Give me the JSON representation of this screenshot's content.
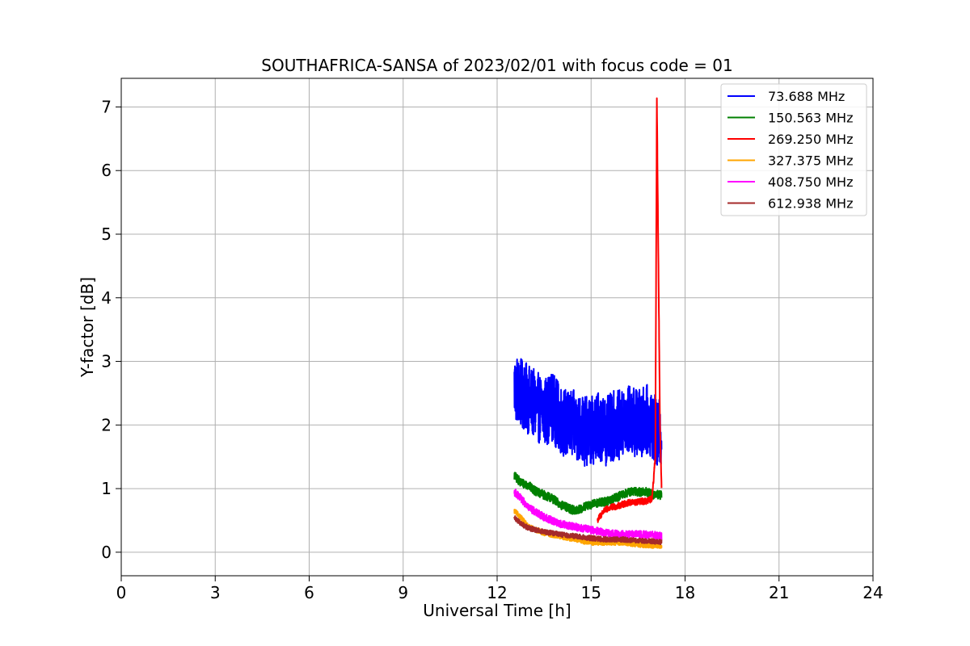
{
  "chart_data": {
    "type": "line",
    "title": "SOUTHAFRICA-SANSA of 2023/02/01 with focus code = 01",
    "xlabel": "Universal Time [h]",
    "ylabel": "Y-factor [dB]",
    "xlim": [
      0,
      24
    ],
    "ylim": [
      -0.37,
      7.45
    ],
    "x_ticks": [
      0,
      3,
      6,
      9,
      12,
      15,
      18,
      21,
      24
    ],
    "x_tick_labels": [
      "0",
      "3",
      "6",
      "9",
      "12",
      "15",
      "18",
      "21",
      "24"
    ],
    "y_ticks": [
      0,
      1,
      2,
      3,
      4,
      5,
      6,
      7
    ],
    "y_tick_labels": [
      "0",
      "1",
      "2",
      "3",
      "4",
      "5",
      "6",
      "7"
    ],
    "grid": true,
    "legend_position": "top-right",
    "x_range_observed": [
      12.55,
      17.25
    ],
    "series": [
      {
        "name": " 73.688 MHz",
        "color": "#0000ff",
        "noise": 0.55,
        "x": [
          12.55,
          12.75,
          13.0,
          13.25,
          13.5,
          13.75,
          14.0,
          14.25,
          14.5,
          14.75,
          15.0,
          15.25,
          15.5,
          15.75,
          16.0,
          16.25,
          16.5,
          16.75,
          17.0,
          17.1,
          17.25
        ],
        "values": [
          2.6,
          2.5,
          2.4,
          2.3,
          2.2,
          2.3,
          2.1,
          2.0,
          2.0,
          1.9,
          1.9,
          2.0,
          1.9,
          2.0,
          2.0,
          2.1,
          2.0,
          2.1,
          2.0,
          1.8,
          1.9
        ]
      },
      {
        "name": "150.563 MHz",
        "color": "#008000",
        "noise": 0.07,
        "x": [
          12.55,
          12.75,
          13.0,
          13.25,
          13.5,
          13.75,
          14.0,
          14.25,
          14.5,
          14.75,
          15.0,
          15.25,
          15.5,
          15.75,
          16.0,
          16.25,
          16.5,
          16.75,
          17.0,
          17.25
        ],
        "values": [
          1.2,
          1.1,
          1.05,
          0.95,
          0.9,
          0.85,
          0.75,
          0.7,
          0.65,
          0.7,
          0.75,
          0.78,
          0.8,
          0.85,
          0.9,
          0.95,
          0.95,
          0.95,
          0.9,
          0.9
        ]
      },
      {
        "name": "269.250 MHz",
        "color": "#ff0000",
        "noise": 0.05,
        "x": [
          15.2,
          15.4,
          15.6,
          15.8,
          16.0,
          16.2,
          16.4,
          16.6,
          16.8,
          16.95,
          17.05,
          17.1,
          17.15,
          17.2,
          17.25
        ],
        "values": [
          0.5,
          0.65,
          0.7,
          0.72,
          0.75,
          0.78,
          0.78,
          0.8,
          0.8,
          0.85,
          1.5,
          7.1,
          4.5,
          2.0,
          1.0
        ]
      },
      {
        "name": "327.375 MHz",
        "color": "#ffa500",
        "noise": 0.04,
        "x": [
          12.55,
          12.75,
          13.0,
          13.5,
          14.0,
          14.5,
          15.0,
          15.5,
          16.0,
          16.5,
          17.0,
          17.25
        ],
        "values": [
          0.65,
          0.55,
          0.4,
          0.3,
          0.25,
          0.2,
          0.15,
          0.15,
          0.15,
          0.12,
          0.1,
          0.1
        ]
      },
      {
        "name": "408.750 MHz",
        "color": "#ff00ff",
        "noise": 0.06,
        "x": [
          12.55,
          12.75,
          13.0,
          13.5,
          14.0,
          14.5,
          15.0,
          15.5,
          16.0,
          16.5,
          17.0,
          17.25
        ],
        "values": [
          0.95,
          0.85,
          0.7,
          0.55,
          0.45,
          0.4,
          0.35,
          0.3,
          0.28,
          0.28,
          0.27,
          0.25
        ]
      },
      {
        "name": "612.938 MHz",
        "color": "#a52a2a",
        "noise": 0.04,
        "x": [
          12.55,
          12.75,
          13.0,
          13.5,
          14.0,
          14.5,
          15.0,
          15.5,
          16.0,
          16.5,
          17.0,
          17.25
        ],
        "values": [
          0.55,
          0.45,
          0.38,
          0.32,
          0.28,
          0.25,
          0.22,
          0.2,
          0.2,
          0.18,
          0.17,
          0.16
        ]
      }
    ]
  }
}
